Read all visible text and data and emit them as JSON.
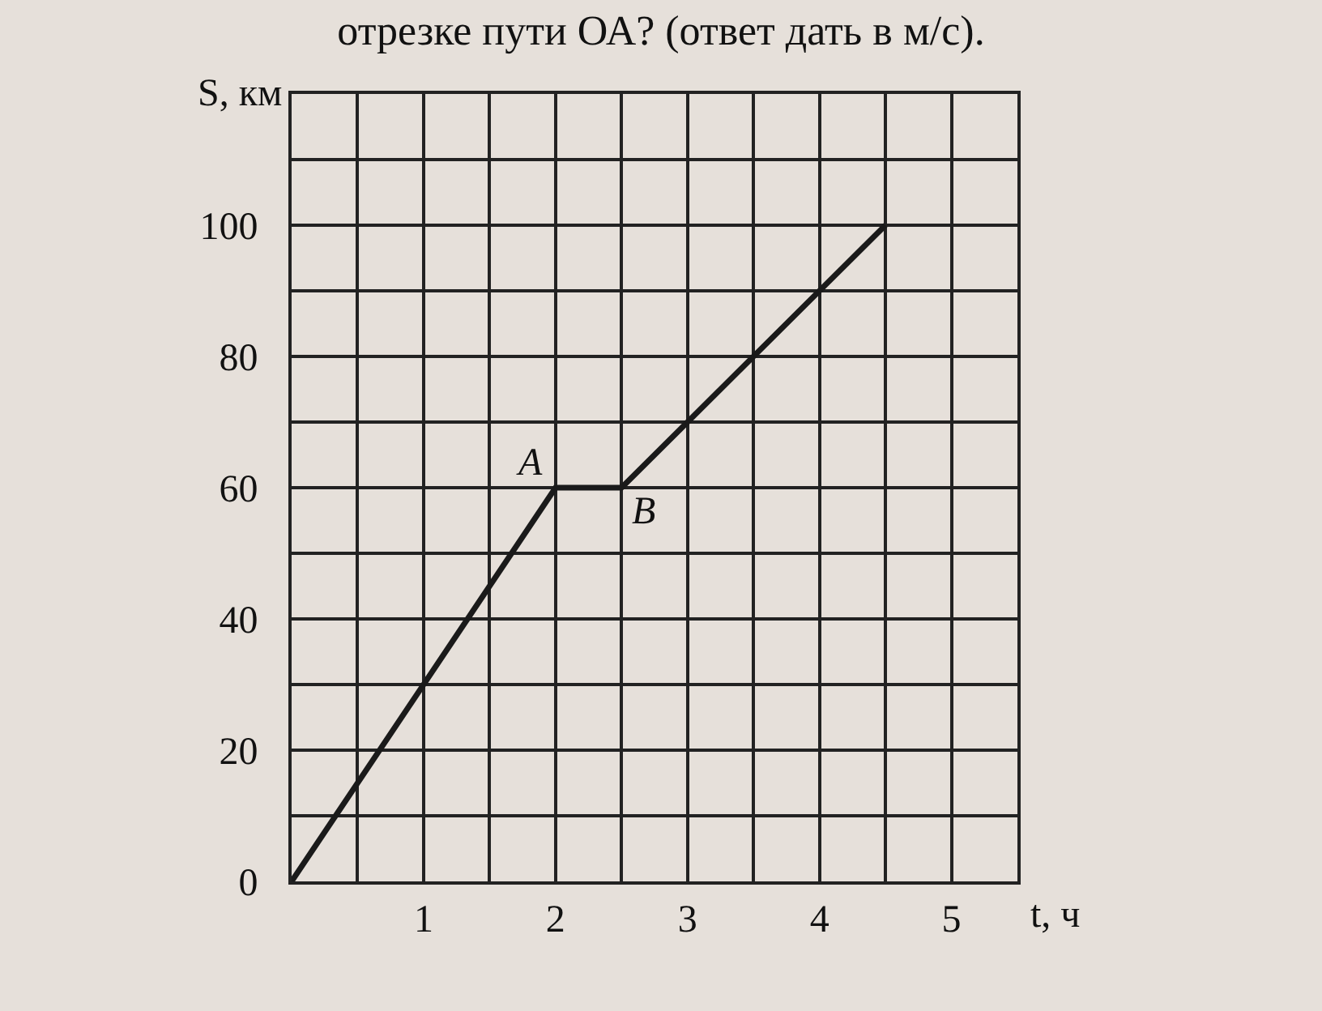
{
  "chart_data": {
    "type": "line",
    "title": "отрезке пути ОА? (ответ дать в м/с).",
    "xlabel": "t, ч",
    "ylabel": "S, км",
    "x": [
      0,
      2,
      2.5,
      4.5
    ],
    "series": [
      {
        "color": "#1a1a1a",
        "values": [
          0,
          60,
          60,
          100
        ]
      }
    ],
    "xlim": [
      0,
      5.5
    ],
    "ylim": [
      0,
      120
    ],
    "xticks": [
      {
        "value": 0,
        "label": null
      },
      {
        "value": 0.5,
        "label": null
      },
      1,
      {
        "value": 1.5,
        "label": null
      },
      2,
      {
        "value": 2.5,
        "label": null
      },
      3,
      {
        "value": 3.5,
        "label": null
      },
      4,
      {
        "value": 4.5,
        "label": null
      },
      5,
      {
        "value": 5.5,
        "label": null
      }
    ],
    "yticks": [
      0,
      {
        "value": 10,
        "label": null
      },
      20,
      {
        "value": 30,
        "label": null
      },
      40,
      {
        "value": 50,
        "label": null
      },
      60,
      {
        "value": 70,
        "label": null
      },
      80,
      {
        "value": 90,
        "label": null
      },
      100,
      {
        "value": 110,
        "label": null
      },
      {
        "value": 120,
        "label": null
      }
    ],
    "annotations": [
      {
        "text": "A",
        "x": 2,
        "y": 60
      },
      {
        "text": "B",
        "x": 2.5,
        "y": 60
      }
    ],
    "grid": true,
    "marker": "none",
    "line_style": "solid",
    "legend": false
  }
}
